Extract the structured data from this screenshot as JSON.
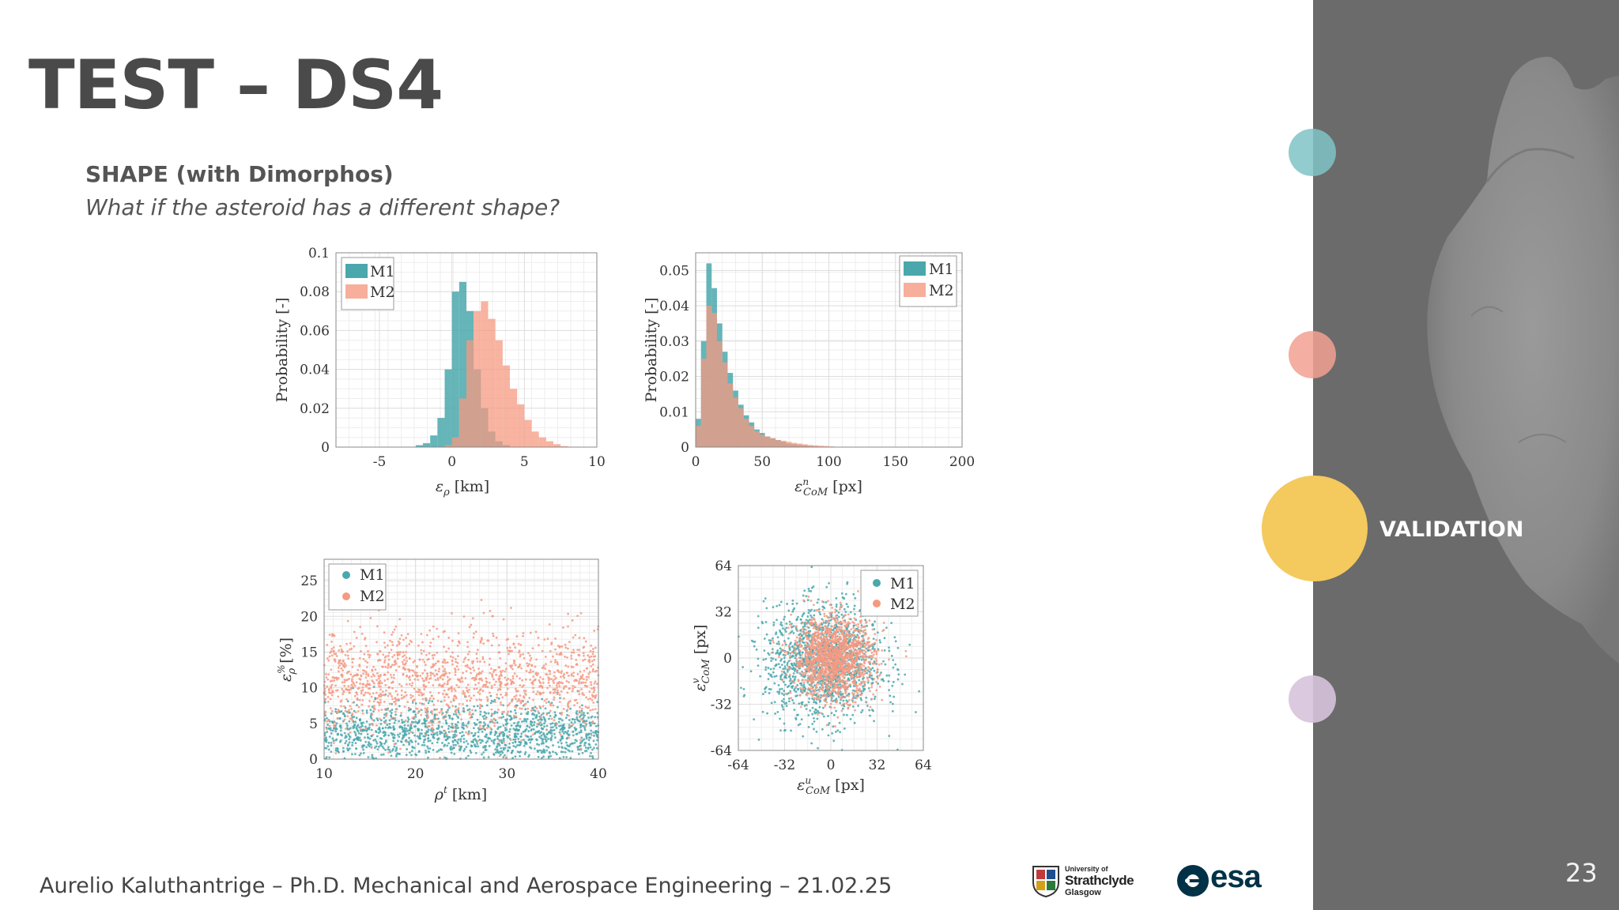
{
  "slide": {
    "title": "TEST – DS4",
    "subtitle": "SHAPE (with Dimorphos)",
    "question": "What if the asteroid has a different shape?",
    "footer": "Aurelio Kaluthantrige – Ph.D. Mechanical and Aerospace Engineering – 21.02.25",
    "page_number": "23",
    "section_label": "VALIDATION",
    "logos": {
      "strathclyde_small": "University of",
      "strathclyde_main": "Strathclyde",
      "strathclyde_city": "Glasgow",
      "esa": "esa"
    }
  },
  "colors": {
    "M1": "#4aa8ad",
    "M2": "#f59a82",
    "sidebar": "#6b6b6b",
    "validation_dot": "#f4c95d",
    "dot_teal": "#7fc3c5",
    "dot_salmon": "#f2a092",
    "dot_lilac": "#d7c3dc"
  },
  "chart_data": [
    {
      "type": "histogram",
      "xlabel": "ε_ρ [km]",
      "ylabel": "Probability [-]",
      "xlim": [
        -8,
        10
      ],
      "ylim": [
        0,
        0.1
      ],
      "xticks": [
        "-5",
        "0",
        "5",
        "10"
      ],
      "yticks": [
        "0",
        "0.02",
        "0.04",
        "0.06",
        "0.08",
        "0.1"
      ],
      "legend_position": "top-left",
      "series": [
        {
          "name": "M1",
          "color": "#4aa8ad",
          "bin_centers": [
            -2.25,
            -1.75,
            -1.25,
            -0.75,
            -0.25,
            0.25,
            0.75,
            1.25,
            1.75,
            2.25,
            2.75,
            3.25,
            3.75
          ],
          "values": [
            0.001,
            0.002,
            0.006,
            0.015,
            0.04,
            0.08,
            0.085,
            0.07,
            0.04,
            0.02,
            0.008,
            0.003,
            0.001
          ]
        },
        {
          "name": "M2",
          "color": "#f59a82",
          "bin_centers": [
            -0.25,
            0.25,
            0.75,
            1.25,
            1.75,
            2.25,
            2.75,
            3.25,
            3.75,
            4.25,
            4.75,
            5.25,
            5.75,
            6.25,
            6.75,
            7.25,
            7.75
          ],
          "values": [
            0.001,
            0.005,
            0.025,
            0.055,
            0.07,
            0.075,
            0.066,
            0.055,
            0.042,
            0.03,
            0.022,
            0.014,
            0.008,
            0.005,
            0.003,
            0.0015,
            0.0005
          ]
        }
      ]
    },
    {
      "type": "histogram",
      "xlabel": "ε^n_CoM [px]",
      "ylabel": "Probability [-]",
      "xlim": [
        0,
        200
      ],
      "ylim": [
        0,
        0.055
      ],
      "xticks": [
        "0",
        "50",
        "100",
        "150",
        "200"
      ],
      "yticks": [
        "0",
        "0.01",
        "0.02",
        "0.03",
        "0.04",
        "0.05"
      ],
      "legend_position": "top-right",
      "series": [
        {
          "name": "M1",
          "color": "#4aa8ad",
          "bin_centers": [
            2,
            6,
            10,
            14,
            18,
            22,
            26,
            30,
            34,
            38,
            42,
            46,
            50,
            54,
            58,
            62,
            66,
            70,
            74,
            78,
            82,
            86,
            90
          ],
          "values": [
            0.008,
            0.03,
            0.052,
            0.045,
            0.035,
            0.027,
            0.021,
            0.016,
            0.012,
            0.009,
            0.007,
            0.005,
            0.004,
            0.003,
            0.0025,
            0.002,
            0.0015,
            0.001,
            0.0008,
            0.0006,
            0.0005,
            0.0003,
            0.0002
          ]
        },
        {
          "name": "M2",
          "color": "#f59a82",
          "bin_centers": [
            2,
            6,
            10,
            14,
            18,
            22,
            26,
            30,
            34,
            38,
            42,
            46,
            50,
            54,
            58,
            62,
            66,
            70,
            74,
            78,
            82,
            86,
            90,
            94,
            98,
            102,
            106
          ],
          "values": [
            0.006,
            0.025,
            0.04,
            0.038,
            0.03,
            0.024,
            0.018,
            0.014,
            0.011,
            0.008,
            0.006,
            0.0045,
            0.0035,
            0.003,
            0.0025,
            0.002,
            0.0018,
            0.0015,
            0.0012,
            0.001,
            0.0008,
            0.0006,
            0.0005,
            0.0004,
            0.0003,
            0.0002,
            0.0001
          ]
        }
      ]
    },
    {
      "type": "scatter",
      "xlabel": "ρ^t [km]",
      "ylabel": "ε^%_ρ [%]",
      "xlim": [
        10,
        40
      ],
      "ylim": [
        0,
        28
      ],
      "xticks": [
        "10",
        "20",
        "30",
        "40"
      ],
      "yticks": [
        "0",
        "5",
        "10",
        "15",
        "20",
        "25"
      ],
      "legend_position": "top-left",
      "series": [
        {
          "name": "M1",
          "color": "#4aa8ad",
          "distribution": {
            "x_uniform": [
              10,
              40
            ],
            "y_center": 3.5,
            "y_spread": 3.5,
            "count": 1400
          }
        },
        {
          "name": "M2",
          "color": "#f59a82",
          "distribution": {
            "x_uniform": [
              10,
              40
            ],
            "y_center": 11,
            "y_spread": 6,
            "count": 1400
          }
        }
      ]
    },
    {
      "type": "scatter",
      "xlabel": "ε^u_CoM [px]",
      "ylabel": "ε^v_CoM [px]",
      "xlim": [
        -64,
        64
      ],
      "ylim": [
        -64,
        64
      ],
      "xticks": [
        "-64",
        "-32",
        "0",
        "32",
        "64"
      ],
      "yticks": [
        "-64",
        "-32",
        "0",
        "32",
        "64"
      ],
      "legend_position": "top-right",
      "series": [
        {
          "name": "M1",
          "color": "#4aa8ad",
          "distribution": {
            "center": [
              -5,
              -3
            ],
            "sigma": 20,
            "count": 1500
          }
        },
        {
          "name": "M2",
          "color": "#f59a82",
          "distribution": {
            "center": [
              2,
              0
            ],
            "sigma": 14,
            "count": 1500
          }
        }
      ]
    }
  ]
}
